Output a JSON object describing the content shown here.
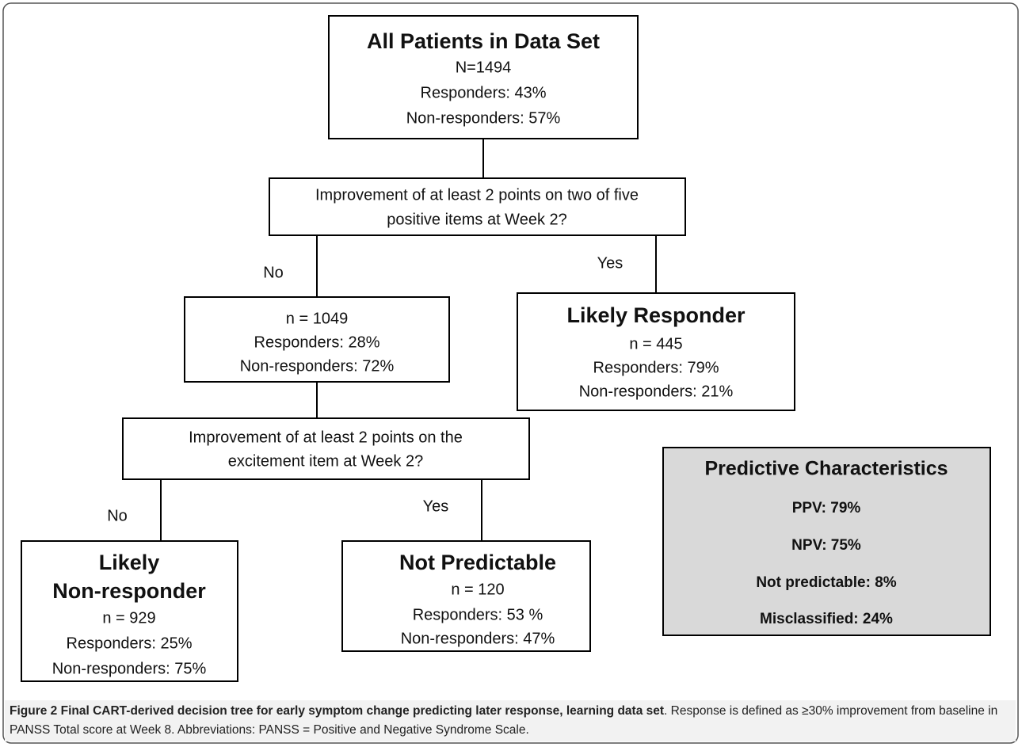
{
  "nodes": [
    {
      "title": "All Patients in Data Set",
      "lines": [
        "N=1494",
        "Responders:  43%",
        "Non-responders:  57%"
      ]
    },
    {
      "lines": [
        "n = 1049",
        "Responders:  28%",
        "Non-responders:  72%"
      ]
    },
    {
      "title": "Likely Responder",
      "lines": [
        "n = 445",
        "Responders:  79%",
        "Non-responders:  21%"
      ]
    },
    {
      "title_lines": [
        "Likely",
        "Non-responder"
      ],
      "lines": [
        "n = 929",
        "Responders:  25%",
        "Non-responders: 75%"
      ]
    },
    {
      "title": "Not Predictable",
      "lines": [
        "n = 120",
        "Responders:  53 %",
        "Non-responders:  47%"
      ]
    }
  ],
  "questions": [
    [
      "Improvement of at least 2 points on two of five",
      "positive items at Week 2?"
    ],
    [
      "Improvement of at least 2 points on the",
      "excitement item at Week 2?"
    ]
  ],
  "edge_labels": [
    "No",
    "Yes",
    "No",
    "Yes"
  ],
  "predictive": {
    "title": "Predictive Characteristics",
    "items": [
      "PPV:  79%",
      "NPV:  75%",
      "Not predictable:  8%",
      "Misclassified:  24%"
    ]
  },
  "caption": {
    "label": "Figure 2",
    "title": "Final CART-derived decision tree for early symptom change predicting later response, learning data set",
    "text": ". Response is defined as ≥30% improvement from baseline in PANSS Total score at Week 8. Abbreviations: PANSS = Positive and Negative Syndrome Scale."
  }
}
